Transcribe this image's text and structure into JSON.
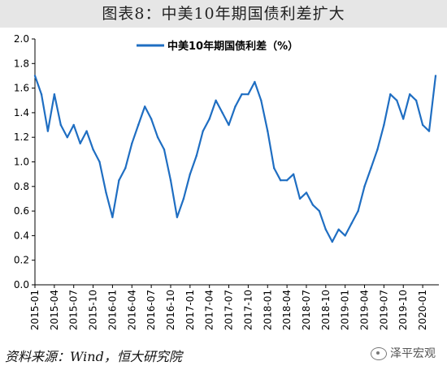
{
  "figure_title": "图表8：中美10年期国债利差扩大",
  "source_text": "资料来源：Wind，恒大研究院",
  "watermark_text": "泽平宏观",
  "colors": {
    "line": "#1f6ec2",
    "axis": "#000000",
    "title_bg": "#e6e6e6"
  },
  "chart_data": {
    "type": "line",
    "title": "",
    "xlabel": "",
    "ylabel": "",
    "ylim": [
      0.0,
      2.0
    ],
    "yticks": [
      "0.0",
      "0.2",
      "0.4",
      "0.6",
      "0.8",
      "1.0",
      "1.2",
      "1.4",
      "1.6",
      "1.8",
      "2.0"
    ],
    "xticks": [
      "2015-01",
      "2015-04",
      "2015-07",
      "2015-10",
      "2016-01",
      "2016-04",
      "2016-07",
      "2016-10",
      "2017-01",
      "2017-04",
      "2017-07",
      "2017-10",
      "2018-01",
      "2018-04",
      "2018-07",
      "2018-10",
      "2019-01",
      "2019-04",
      "2019-07",
      "2019-10",
      "2020-01"
    ],
    "legend_position": "top-center",
    "grid": false,
    "series": [
      {
        "name": "中美10年期国债利差（%）",
        "x": [
          "2015-01",
          "2015-02",
          "2015-03",
          "2015-04",
          "2015-05",
          "2015-06",
          "2015-07",
          "2015-08",
          "2015-09",
          "2015-10",
          "2015-11",
          "2015-12",
          "2016-01",
          "2016-02",
          "2016-03",
          "2016-04",
          "2016-05",
          "2016-06",
          "2016-07",
          "2016-08",
          "2016-09",
          "2016-10",
          "2016-11",
          "2016-12",
          "2017-01",
          "2017-02",
          "2017-03",
          "2017-04",
          "2017-05",
          "2017-06",
          "2017-07",
          "2017-08",
          "2017-09",
          "2017-10",
          "2017-11",
          "2017-12",
          "2018-01",
          "2018-02",
          "2018-03",
          "2018-04",
          "2018-05",
          "2018-06",
          "2018-07",
          "2018-08",
          "2018-09",
          "2018-10",
          "2018-11",
          "2018-12",
          "2019-01",
          "2019-02",
          "2019-03",
          "2019-04",
          "2019-05",
          "2019-06",
          "2019-07",
          "2019-08",
          "2019-09",
          "2019-10",
          "2019-11",
          "2019-12",
          "2020-01",
          "2020-02",
          "2020-03"
        ],
        "values": [
          1.7,
          1.55,
          1.25,
          1.55,
          1.3,
          1.2,
          1.3,
          1.15,
          1.25,
          1.1,
          1.0,
          0.75,
          0.55,
          0.85,
          0.95,
          1.15,
          1.3,
          1.45,
          1.35,
          1.2,
          1.1,
          0.85,
          0.55,
          0.7,
          0.9,
          1.05,
          1.25,
          1.35,
          1.5,
          1.4,
          1.3,
          1.45,
          1.55,
          1.55,
          1.65,
          1.5,
          1.25,
          0.95,
          0.85,
          0.85,
          0.9,
          0.7,
          0.75,
          0.65,
          0.6,
          0.45,
          0.35,
          0.45,
          0.4,
          0.5,
          0.6,
          0.8,
          0.95,
          1.1,
          1.3,
          1.55,
          1.5,
          1.35,
          1.55,
          1.5,
          1.3,
          1.25,
          1.7
        ]
      }
    ]
  }
}
